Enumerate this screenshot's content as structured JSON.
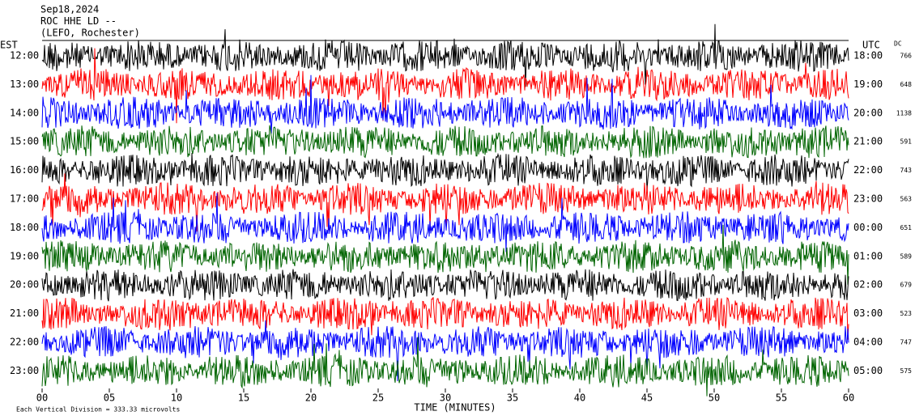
{
  "chart_data": {
    "type": "helicorder",
    "header": [
      "Sep18,2024",
      "ROC HHE LD --",
      "(LEFO, Rochester)"
    ],
    "left_axis_label": "EST",
    "right_axis_label": "UTC",
    "dc_label": "DC",
    "x_label": "TIME (MINUTES)",
    "footnote": "Each Vertical Division = 333.33 microvolts",
    "xlim": [
      0,
      60
    ],
    "xticks": [
      {
        "value": 0,
        "label": "00"
      },
      {
        "value": 5,
        "label": "05"
      },
      10,
      15,
      20,
      25,
      30,
      35,
      40,
      45,
      50,
      55,
      60
    ],
    "rows": [
      {
        "est": "12:00",
        "utc": "18:00",
        "dc": 766,
        "color": "#000000"
      },
      {
        "est": "13:00",
        "utc": "19:00",
        "dc": 648,
        "color": "#ff0000"
      },
      {
        "est": "14:00",
        "utc": "20:00",
        "dc": 1138,
        "color": "#0000ff"
      },
      {
        "est": "15:00",
        "utc": "21:00",
        "dc": 591,
        "color": "#006400"
      },
      {
        "est": "16:00",
        "utc": "22:00",
        "dc": 743,
        "color": "#000000"
      },
      {
        "est": "17:00",
        "utc": "23:00",
        "dc": 563,
        "color": "#ff0000"
      },
      {
        "est": "18:00",
        "utc": "00:00",
        "dc": 651,
        "color": "#0000ff"
      },
      {
        "est": "19:00",
        "utc": "01:00",
        "dc": 589,
        "color": "#006400"
      },
      {
        "est": "20:00",
        "utc": "02:00",
        "dc": 679,
        "color": "#000000"
      },
      {
        "est": "21:00",
        "utc": "03:00",
        "dc": 523,
        "color": "#ff0000"
      },
      {
        "est": "22:00",
        "utc": "04:00",
        "dc": 747,
        "color": "#0000ff"
      },
      {
        "est": "23:00",
        "utc": "05:00",
        "dc": 575,
        "color": "#006400"
      }
    ]
  }
}
